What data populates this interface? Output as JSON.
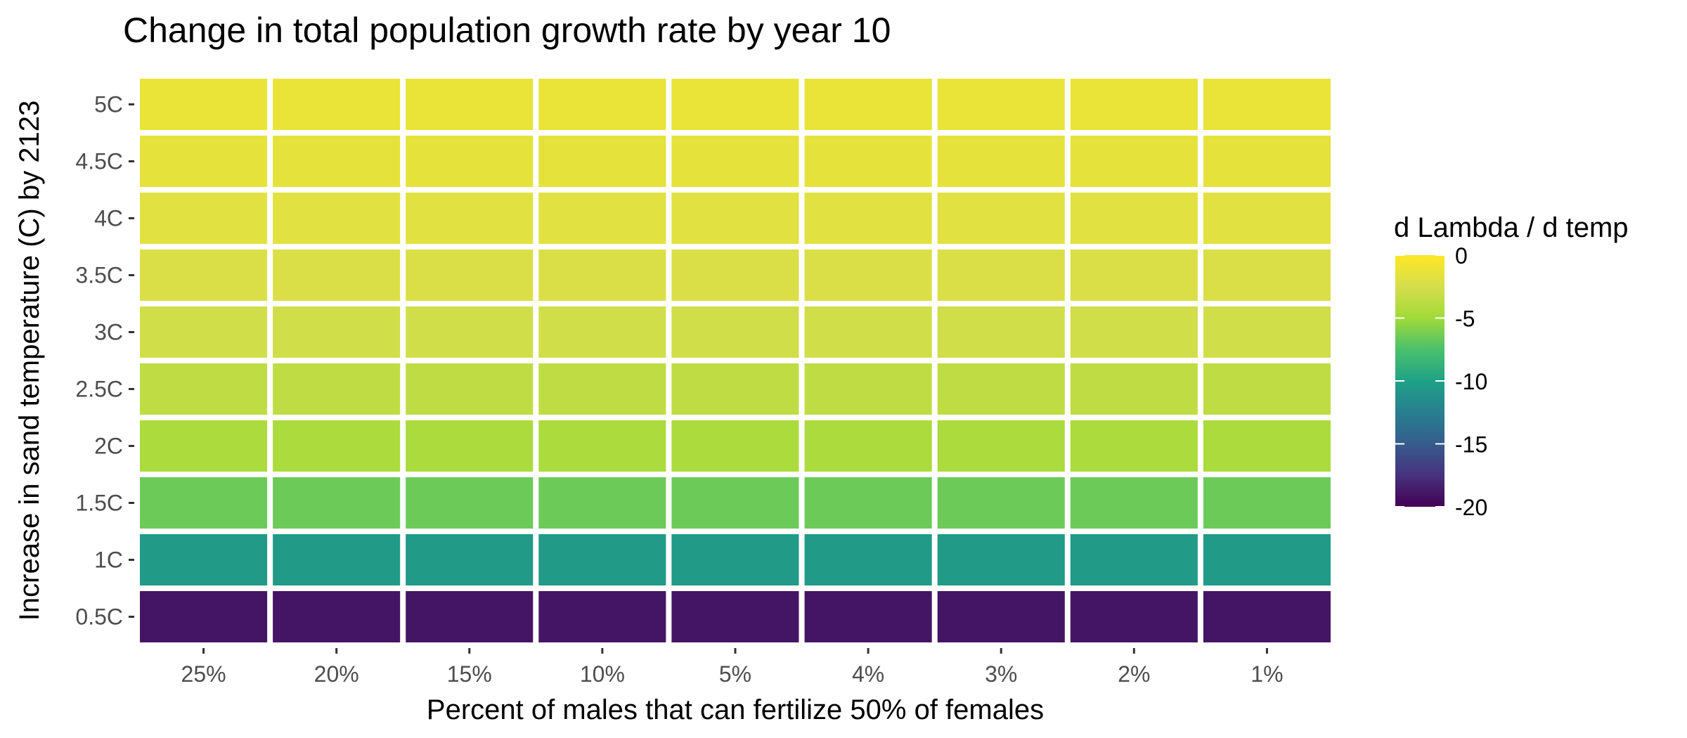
{
  "chart_data": {
    "type": "heatmap",
    "title": "Change in total population growth rate by year 10",
    "xlabel": "Percent of males that can fertilize 50% of females",
    "ylabel": "Increase in sand temperature (C) by 2123",
    "x": [
      "25%",
      "20%",
      "15%",
      "10%",
      "5%",
      "4%",
      "3%",
      "2%",
      "1%"
    ],
    "y": [
      "5C",
      "4.5C",
      "4C",
      "3.5C",
      "3C",
      "2.5C",
      "2C",
      "1.5C",
      "1C",
      "0.5C"
    ],
    "row_values": [
      -1.2,
      -1.5,
      -1.8,
      -2.2,
      -2.8,
      -3.5,
      -4.5,
      -6.5,
      -10.5,
      -19.0
    ],
    "values": [
      [
        -1.2,
        -1.2,
        -1.2,
        -1.2,
        -1.2,
        -1.2,
        -1.2,
        -1.2,
        -1.2
      ],
      [
        -1.5,
        -1.5,
        -1.5,
        -1.5,
        -1.5,
        -1.5,
        -1.5,
        -1.5,
        -1.5
      ],
      [
        -1.8,
        -1.8,
        -1.8,
        -1.8,
        -1.8,
        -1.8,
        -1.8,
        -1.8,
        -1.8
      ],
      [
        -2.2,
        -2.2,
        -2.2,
        -2.2,
        -2.2,
        -2.2,
        -2.2,
        -2.2,
        -2.2
      ],
      [
        -2.8,
        -2.8,
        -2.8,
        -2.8,
        -2.8,
        -2.8,
        -2.8,
        -2.8,
        -2.8
      ],
      [
        -3.5,
        -3.5,
        -3.5,
        -3.5,
        -3.5,
        -3.5,
        -3.5,
        -3.5,
        -3.5
      ],
      [
        -4.5,
        -4.5,
        -4.5,
        -4.5,
        -4.5,
        -4.5,
        -4.5,
        -4.5,
        -4.5
      ],
      [
        -6.5,
        -6.5,
        -6.5,
        -6.5,
        -6.5,
        -6.5,
        -6.5,
        -6.5,
        -6.5
      ],
      [
        -10.5,
        -10.5,
        -10.5,
        -10.5,
        -10.5,
        -10.5,
        -10.5,
        -10.5,
        -10.5
      ],
      [
        -19.0,
        -19.0,
        -19.0,
        -19.0,
        -19.0,
        -19.0,
        -19.0,
        -19.0,
        -19.0
      ]
    ],
    "legend": {
      "title": "d Lambda / d temp",
      "range": [
        -20,
        0
      ],
      "ticks": [
        0,
        -5,
        -10,
        -15,
        -20
      ],
      "tick_labels": [
        "0",
        "-5",
        "-10",
        "-15",
        "-20"
      ],
      "placement": "right"
    },
    "colorscale": "viridis",
    "colors": {
      "scale_stops": [
        "#440154",
        "#3b528b",
        "#21918c",
        "#5ec962",
        "#fde725"
      ],
      "tile_border": "#ffffff",
      "tick_text": "#4d4d4d"
    },
    "grid": false
  }
}
